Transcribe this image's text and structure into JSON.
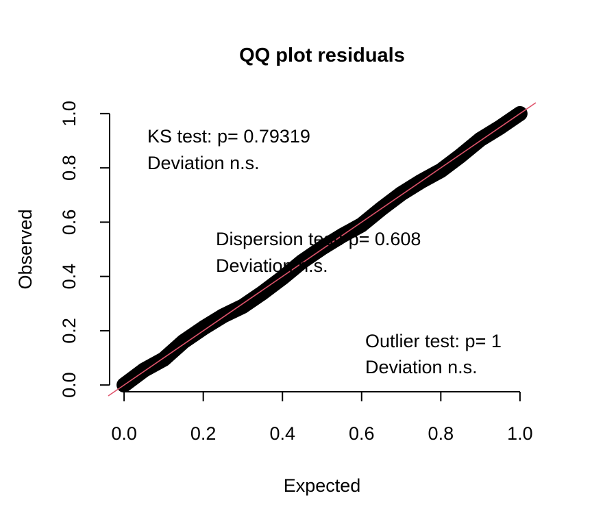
{
  "chart_data": {
    "type": "scatter",
    "title": "QQ plot residuals",
    "xlabel": "Expected",
    "ylabel": "Observed",
    "xlim": [
      -0.04,
      1.04
    ],
    "ylim": [
      -0.04,
      1.04
    ],
    "x_ticks": [
      "0.0",
      "0.2",
      "0.4",
      "0.6",
      "0.8",
      "1.0"
    ],
    "y_ticks": [
      "0.0",
      "0.2",
      "0.4",
      "0.6",
      "0.8",
      "1.0"
    ],
    "grid": false,
    "legend": "none",
    "series": [
      {
        "points": [
          {
            "x": 0.0,
            "y": 0.0
          },
          {
            "x": 0.05,
            "y": 0.055
          },
          {
            "x": 0.1,
            "y": 0.095
          },
          {
            "x": 0.15,
            "y": 0.16
          },
          {
            "x": 0.2,
            "y": 0.21
          },
          {
            "x": 0.25,
            "y": 0.255
          },
          {
            "x": 0.3,
            "y": 0.29
          },
          {
            "x": 0.35,
            "y": 0.34
          },
          {
            "x": 0.4,
            "y": 0.395
          },
          {
            "x": 0.45,
            "y": 0.455
          },
          {
            "x": 0.5,
            "y": 0.505
          },
          {
            "x": 0.55,
            "y": 0.55
          },
          {
            "x": 0.6,
            "y": 0.59
          },
          {
            "x": 0.65,
            "y": 0.65
          },
          {
            "x": 0.7,
            "y": 0.705
          },
          {
            "x": 0.75,
            "y": 0.75
          },
          {
            "x": 0.8,
            "y": 0.79
          },
          {
            "x": 0.85,
            "y": 0.845
          },
          {
            "x": 0.9,
            "y": 0.905
          },
          {
            "x": 0.95,
            "y": 0.95
          },
          {
            "x": 1.0,
            "y": 1.0
          }
        ],
        "color": "#000000"
      }
    ],
    "reference_line": {
      "slope": 1,
      "intercept": 0,
      "color": "#DF536B"
    },
    "annotations": {
      "ks": {
        "line1": "KS test: p= 0.79319",
        "line2": "Deviation  n.s."
      },
      "dispersion": {
        "line1": "Dispersion test: p= 0.608",
        "line2": "Deviation  n.s."
      },
      "outlier": {
        "line1": "Outlier test: p= 1",
        "line2": "Deviation  n.s."
      }
    }
  }
}
